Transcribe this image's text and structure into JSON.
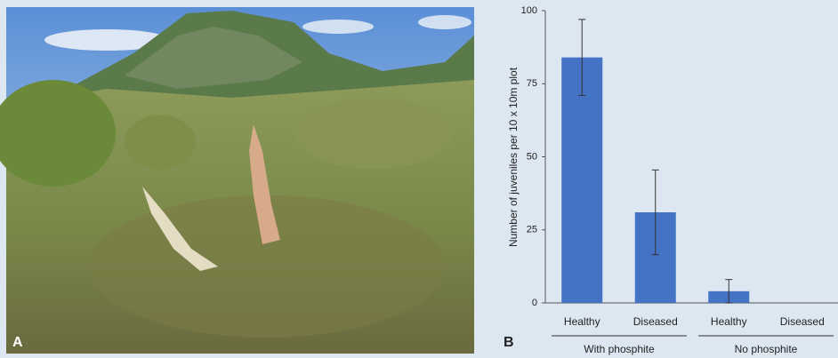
{
  "panels": {
    "photo_label": "A",
    "chart_label": "B"
  },
  "chart_data": {
    "type": "bar",
    "ylabel": "Number of juveniles per 10 x 10m plot",
    "categories": [
      "Healthy",
      "Diseased",
      "Healthy",
      "Diseased"
    ],
    "groups": [
      "With phosphite",
      "No phosphite"
    ],
    "values": [
      84,
      31,
      4,
      0
    ],
    "errors": [
      13,
      14.5,
      4,
      null
    ],
    "color": "#4472c4",
    "ylim": [
      0,
      100
    ],
    "yticks": [
      0,
      25,
      50,
      75,
      100
    ],
    "grid": false
  }
}
